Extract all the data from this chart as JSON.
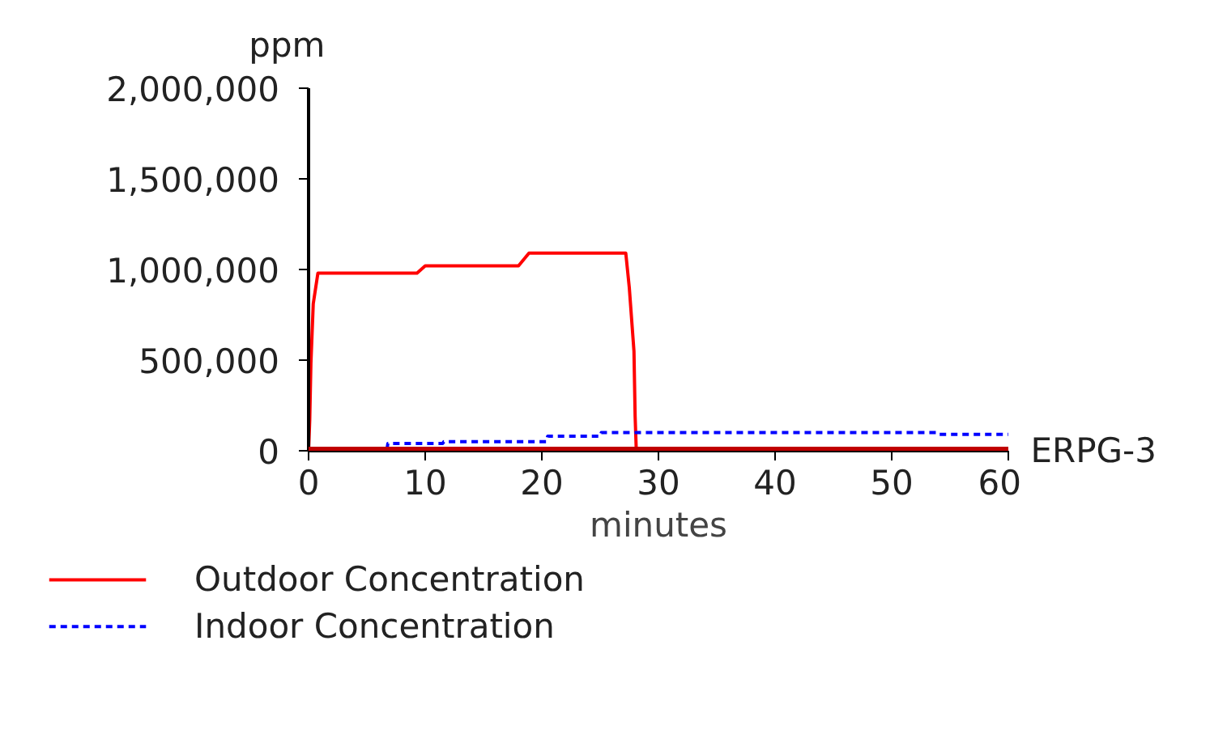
{
  "chart_data": {
    "type": "line",
    "ylabel": "ppm",
    "xlabel": "minutes",
    "xlim": [
      0,
      60
    ],
    "xticks": [
      0,
      10,
      20,
      30,
      40,
      50,
      60
    ],
    "ylim": [
      0,
      2000000
    ],
    "yticks": [
      {
        "value": 0,
        "label": "0"
      },
      {
        "value": 500000,
        "label": "500,000"
      },
      {
        "value": 1000000,
        "label": "1,000,000"
      },
      {
        "value": 1500000,
        "label": "1,500,000"
      },
      {
        "value": 2000000,
        "label": "2,000,000"
      }
    ],
    "series": [
      {
        "name": "Outdoor Concentration",
        "color": "#ff0000",
        "line_style": "solid",
        "x": [
          0,
          0.1,
          0.2,
          0.4,
          0.8,
          9.3,
          10,
          18,
          18.9,
          27.2,
          27.5,
          27.9,
          28,
          28.1,
          60
        ],
        "values": [
          0,
          170000,
          480000,
          810000,
          980000,
          980000,
          1020000,
          1020000,
          1090000,
          1090000,
          900000,
          550000,
          190000,
          0,
          0
        ]
      },
      {
        "name": "Indoor Concentration",
        "color": "#0000ff",
        "line_style": "dashed",
        "x": [
          0,
          6.7,
          6.8,
          11.5,
          11.6,
          20.4,
          20.5,
          25,
          25.1,
          54,
          54.1,
          60
        ],
        "values": [
          0,
          0,
          40000,
          40000,
          50000,
          50000,
          80000,
          80000,
          100000,
          100000,
          90000,
          90000
        ]
      }
    ],
    "ref_lines": [
      {
        "axis": "y",
        "value": 0,
        "label": "ERPG-3",
        "color": "#c00000",
        "line_style": "solid"
      }
    ],
    "legend": "bottom",
    "grid": false
  }
}
